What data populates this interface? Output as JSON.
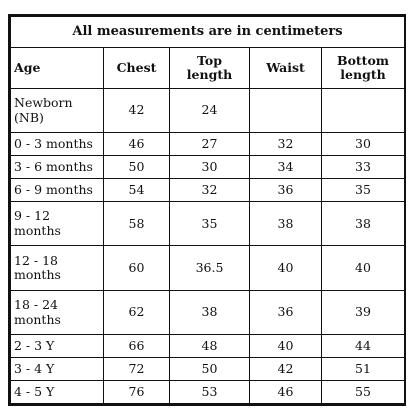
{
  "title": "All measurements are in centimeters",
  "headers": [
    "Age",
    "Chest",
    "Top length",
    "Waist",
    "Bottom length"
  ],
  "rows": [
    {
      "age": "Newborn (NB)",
      "chest": "42",
      "top_length": "24",
      "waist": "",
      "bottom_length": ""
    },
    {
      "age": "0 - 3 months",
      "chest": "46",
      "top_length": "27",
      "waist": "32",
      "bottom_length": "30"
    },
    {
      "age": "3 - 6 months",
      "chest": "50",
      "top_length": "30",
      "waist": "34",
      "bottom_length": "33"
    },
    {
      "age": "6 - 9 months",
      "chest": "54",
      "top_length": "32",
      "waist": "36",
      "bottom_length": "35"
    },
    {
      "age": "9 - 12 months",
      "chest": "58",
      "top_length": "35",
      "waist": "38",
      "bottom_length": "38"
    },
    {
      "age": "12 - 18 months",
      "chest": "60",
      "top_length": "36.5",
      "waist": "40",
      "bottom_length": "40"
    },
    {
      "age": "18 - 24 months",
      "chest": "62",
      "top_length": "38",
      "waist": "36",
      "bottom_length": "39"
    },
    {
      "age": "2 - 3 Y",
      "chest": "66",
      "top_length": "48",
      "waist": "40",
      "bottom_length": "44"
    },
    {
      "age": "3 - 4 Y",
      "chest": "72",
      "top_length": "50",
      "waist": "42",
      "bottom_length": "51"
    },
    {
      "age": "4 - 5 Y",
      "chest": "76",
      "top_length": "53",
      "waist": "46",
      "bottom_length": "55"
    }
  ]
}
